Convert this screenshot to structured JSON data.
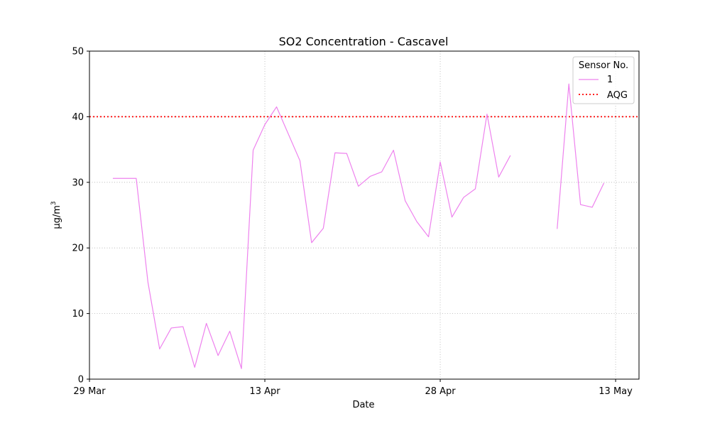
{
  "chart_data": {
    "type": "line",
    "title": "SO2 Concentration - Cascavel",
    "xlabel": "Date",
    "ylabel": "μg/m",
    "ylabel_sup": "3",
    "x_ticks": [
      {
        "date": "2023-03-29",
        "label": "29 Mar"
      },
      {
        "date": "2023-04-13",
        "label": "13 Apr"
      },
      {
        "date": "2023-04-28",
        "label": "28 Apr"
      },
      {
        "date": "2023-05-13",
        "label": "13 May"
      }
    ],
    "xlim": [
      "2023-03-29",
      "2023-05-15"
    ],
    "ylim": [
      0,
      50
    ],
    "y_ticks": [
      0,
      10,
      20,
      30,
      40,
      50
    ],
    "grid": "dotted",
    "legend": {
      "title": "Sensor No.",
      "location": "top-right",
      "entries": [
        {
          "label": "1",
          "style": "line",
          "color": "#ee82ee"
        },
        {
          "label": "AQG",
          "style": "dotted",
          "color": "#ff0000"
        }
      ]
    },
    "reference_line": {
      "name": "AQG",
      "value": 40,
      "color": "#ff0000"
    },
    "series": [
      {
        "name": "1",
        "color": "#ee82ee",
        "points": [
          {
            "x": "2023-03-31",
            "y": 30.6
          },
          {
            "x": "2023-04-01",
            "y": 30.6
          },
          {
            "x": "2023-04-02",
            "y": 30.6
          },
          {
            "x": "2023-04-03",
            "y": 14.8
          },
          {
            "x": "2023-04-04",
            "y": 4.6
          },
          {
            "x": "2023-04-05",
            "y": 7.8
          },
          {
            "x": "2023-04-06",
            "y": 8.0
          },
          {
            "x": "2023-04-07",
            "y": 1.8
          },
          {
            "x": "2023-04-08",
            "y": 8.5
          },
          {
            "x": "2023-04-09",
            "y": 3.6
          },
          {
            "x": "2023-04-10",
            "y": 7.3
          },
          {
            "x": "2023-04-11",
            "y": 1.6
          },
          {
            "x": "2023-04-12",
            "y": 34.9
          },
          {
            "x": "2023-04-13",
            "y": 38.8
          },
          {
            "x": "2023-04-14",
            "y": 41.5
          },
          {
            "x": "2023-04-16",
            "y": 33.3
          },
          {
            "x": "2023-04-17",
            "y": 20.8
          },
          {
            "x": "2023-04-18",
            "y": 23.0
          },
          {
            "x": "2023-04-19",
            "y": 34.5
          },
          {
            "x": "2023-04-20",
            "y": 34.4
          },
          {
            "x": "2023-04-21",
            "y": 29.4
          },
          {
            "x": "2023-04-22",
            "y": 30.9
          },
          {
            "x": "2023-04-23",
            "y": 31.6
          },
          {
            "x": "2023-04-24",
            "y": 34.9
          },
          {
            "x": "2023-04-25",
            "y": 27.2
          },
          {
            "x": "2023-04-26",
            "y": 24.0
          },
          {
            "x": "2023-04-27",
            "y": 21.7
          },
          {
            "x": "2023-04-28",
            "y": 33.1
          },
          {
            "x": "2023-04-29",
            "y": 24.7
          },
          {
            "x": "2023-04-30",
            "y": 27.7
          },
          {
            "x": "2023-05-01",
            "y": 29.0
          },
          {
            "x": "2023-05-02",
            "y": 40.4
          },
          {
            "x": "2023-05-03",
            "y": 30.8
          },
          {
            "x": "2023-05-04",
            "y": 34.1
          },
          {
            "x": "2023-05-05",
            "y": null
          },
          {
            "x": "2023-05-06",
            "y": null
          },
          {
            "x": "2023-05-07",
            "y": null
          },
          {
            "x": "2023-05-08",
            "y": 22.9
          },
          {
            "x": "2023-05-09",
            "y": 45.0
          },
          {
            "x": "2023-05-10",
            "y": 26.6
          },
          {
            "x": "2023-05-11",
            "y": 26.2
          },
          {
            "x": "2023-05-12",
            "y": 29.9
          }
        ]
      }
    ]
  }
}
